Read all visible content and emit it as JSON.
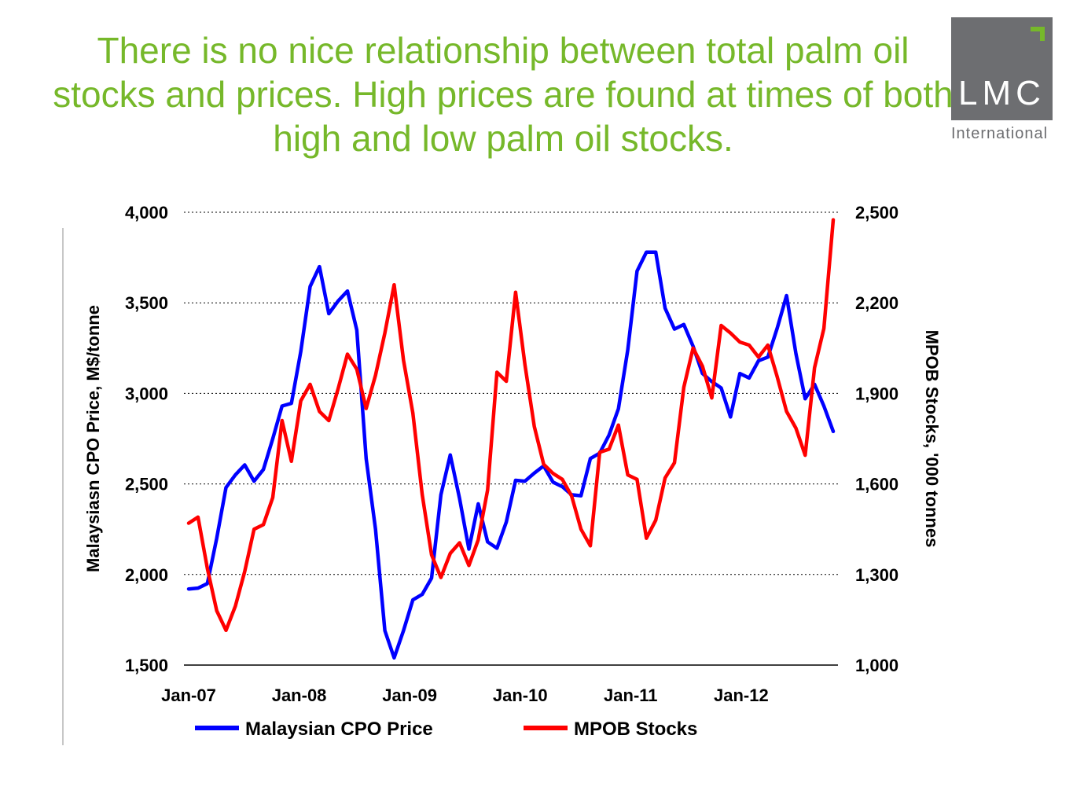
{
  "slide": {
    "title": "There is no nice relationship between total palm oil stocks and prices. High prices are found at times of both high and low palm oil stocks."
  },
  "logo": {
    "text": "LMC",
    "subtext": "International",
    "bg_color": "#6d6e71",
    "accent_color": "#76b82a"
  },
  "chart_data": {
    "type": "line",
    "title": "",
    "legend_position": "bottom",
    "grid": "horizontal-dotted",
    "x_start": "Jan-07",
    "x_labels": [
      "Jan-07",
      "Jan-08",
      "Jan-09",
      "Jan-10",
      "Jan-11",
      "Jan-12"
    ],
    "y_left": {
      "label": "Malaysiasn CPO Price, M$/tonne",
      "range": [
        1500,
        4000
      ],
      "ticks": [
        "1,500",
        "2,000",
        "2,500",
        "3,000",
        "3,500",
        "4,000"
      ]
    },
    "y_right": {
      "label": "MPOB Stocks, '000 tonnes",
      "range": [
        1000,
        2500
      ],
      "ticks": [
        "1,000",
        "1,300",
        "1,600",
        "1,900",
        "2,200",
        "2,500"
      ]
    },
    "series": [
      {
        "name": "Malaysian CPO Price",
        "axis": "left",
        "color": "#0000ff",
        "values": [
          1920,
          1925,
          1950,
          2200,
          2480,
          2550,
          2605,
          2515,
          2580,
          2750,
          2930,
          2945,
          3230,
          3590,
          3700,
          3440,
          3510,
          3565,
          3350,
          2640,
          2250,
          1690,
          1540,
          1690,
          1860,
          1890,
          1980,
          2440,
          2660,
          2420,
          2140,
          2390,
          2180,
          2145,
          2290,
          2520,
          2515,
          2560,
          2600,
          2510,
          2485,
          2440,
          2435,
          2640,
          2670,
          2770,
          2915,
          3240,
          3675,
          3780,
          3780,
          3470,
          3355,
          3380,
          3260,
          3110,
          3065,
          3030,
          2870,
          3110,
          3085,
          3180,
          3200,
          3360,
          3540,
          3220,
          2970,
          3050,
          2930,
          2790
        ]
      },
      {
        "name": "MPOB Stocks",
        "axis": "right",
        "color": "#ff0000",
        "values": [
          1470,
          1490,
          1320,
          1180,
          1115,
          1195,
          1310,
          1450,
          1465,
          1555,
          1810,
          1675,
          1875,
          1930,
          1840,
          1810,
          1915,
          2030,
          1980,
          1850,
          1960,
          2100,
          2260,
          2010,
          1835,
          1565,
          1365,
          1290,
          1370,
          1405,
          1330,
          1415,
          1580,
          1970,
          1940,
          2235,
          1995,
          1790,
          1665,
          1635,
          1615,
          1560,
          1450,
          1395,
          1705,
          1715,
          1795,
          1630,
          1615,
          1420,
          1480,
          1620,
          1670,
          1920,
          2050,
          1990,
          1885,
          2125,
          2100,
          2070,
          2060,
          2020,
          2060,
          1955,
          1840,
          1785,
          1695,
          1985,
          2115,
          2475
        ]
      }
    ]
  }
}
